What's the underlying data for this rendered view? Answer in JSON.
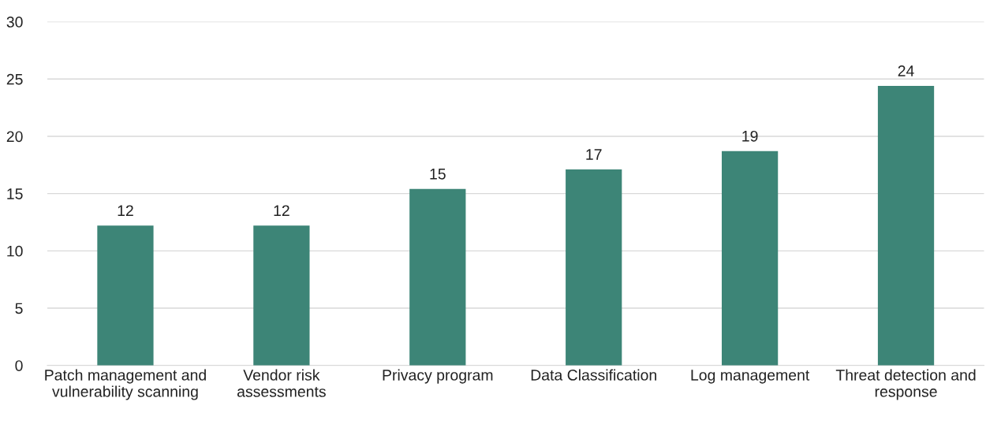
{
  "chart_data": {
    "type": "bar",
    "categories": [
      "Patch management and vulnerability scanning",
      "Vendor risk assessments",
      "Privacy program",
      "Data Classification",
      "Log management",
      "Threat detection and response"
    ],
    "values": [
      12.2,
      12.2,
      15.4,
      17.1,
      18.7,
      24.4
    ],
    "value_labels": [
      "12",
      "12",
      "15",
      "17",
      "19",
      "24"
    ],
    "color": "#3d8577",
    "ylim": [
      0,
      30
    ],
    "yticks": [
      0,
      5,
      10,
      15,
      20,
      25,
      30
    ],
    "grid": "y",
    "legend": false
  }
}
